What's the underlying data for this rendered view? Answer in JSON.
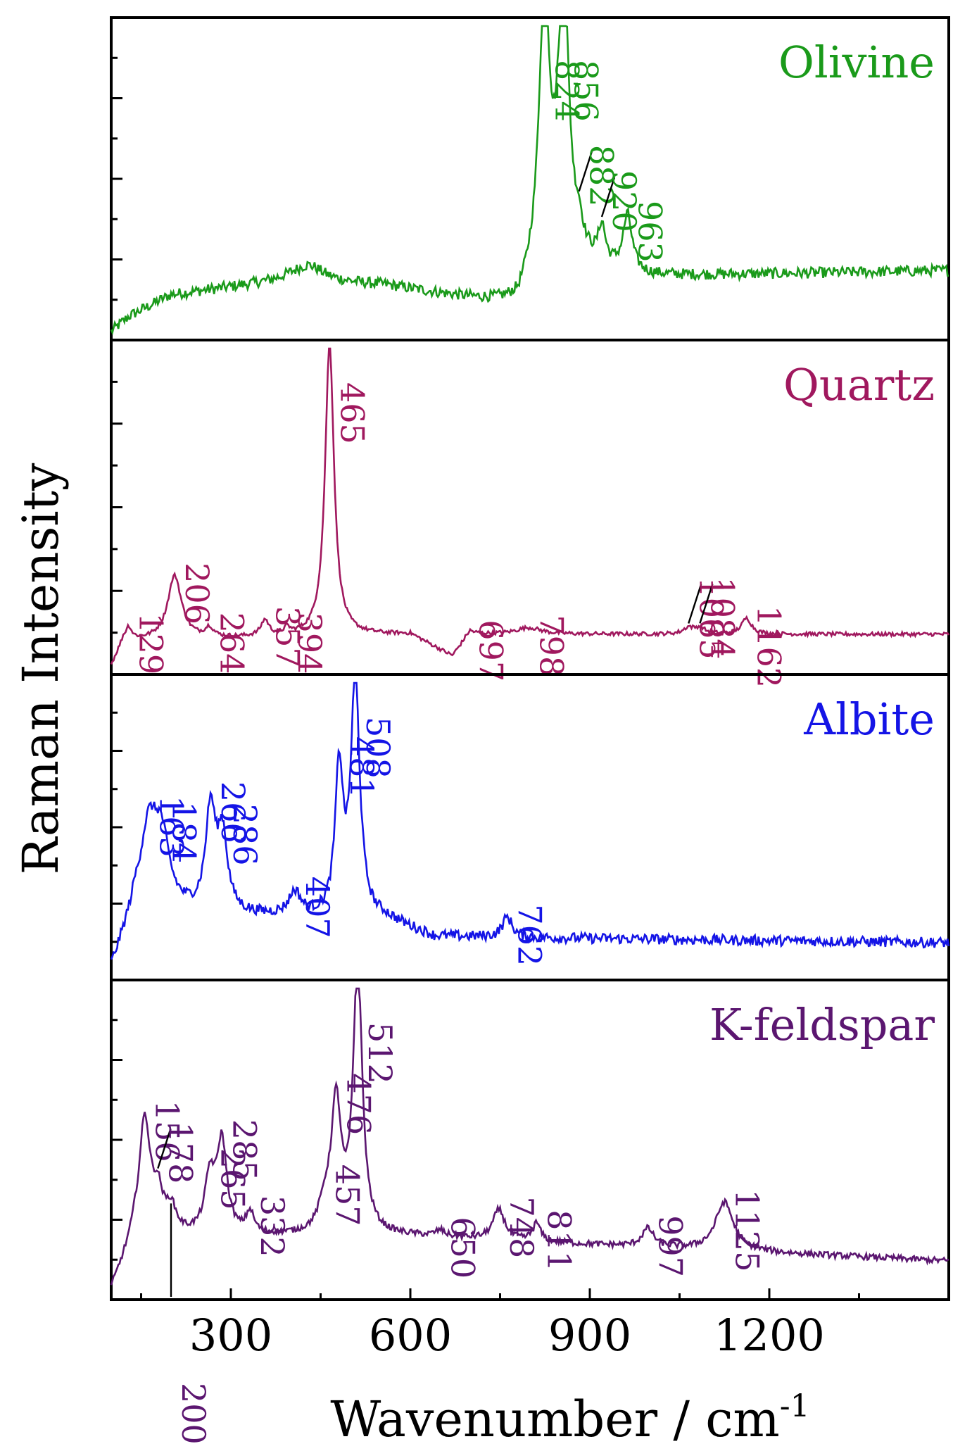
{
  "chart_data": {
    "type": "line",
    "xlabel": "Wavenumber / cm",
    "xlabel_sup": "-1",
    "ylabel": "Raman Intensity",
    "xlim": [
      100,
      1500
    ],
    "x_ticks": [
      300,
      600,
      900,
      1200
    ],
    "x_tick_labels": [
      "300",
      "600",
      "900",
      "1200"
    ],
    "grid": false,
    "panels": [
      {
        "name": "Olivine",
        "color": "#1a9a1a",
        "baseline": 0.22,
        "noise": 0.018,
        "slope": [
          [
            100,
            0.0
          ],
          [
            130,
            0.05
          ],
          [
            200,
            0.12
          ],
          [
            400,
            0.17
          ],
          [
            560,
            0.15
          ],
          [
            780,
            0.08
          ],
          [
            800,
            0.13
          ],
          [
            900,
            0.2
          ],
          [
            1000,
            0.18
          ],
          [
            1500,
            0.2
          ]
        ],
        "peaks": [
          {
            "x": 824,
            "label": "824",
            "h": 0.92,
            "w": 11
          },
          {
            "x": 856,
            "label": "856",
            "h": 0.95,
            "w": 11
          },
          {
            "x": 882,
            "label": "882",
            "h": 0.08,
            "w": 8,
            "leader": true
          },
          {
            "x": 920,
            "label": "920",
            "h": 0.12,
            "w": 7,
            "leader": true
          },
          {
            "x": 963,
            "label": "963",
            "h": 0.18,
            "w": 9
          },
          {
            "x": 430,
            "label": "",
            "h": 0.05,
            "w": 30
          }
        ]
      },
      {
        "name": "Quartz",
        "color": "#a0185e",
        "baseline": 0.1,
        "noise": 0.006,
        "slope": [
          [
            100,
            0.0
          ],
          [
            120,
            0.08
          ],
          [
            600,
            0.1
          ],
          [
            670,
            0.03
          ],
          [
            700,
            0.1
          ],
          [
            1500,
            0.1
          ]
        ],
        "peaks": [
          {
            "x": 129,
            "label": "129",
            "h": 0.04,
            "w": 6
          },
          {
            "x": 206,
            "label": "206",
            "h": 0.2,
            "w": 14
          },
          {
            "x": 264,
            "label": "264",
            "h": 0.03,
            "w": 8
          },
          {
            "x": 357,
            "label": "357",
            "h": 0.05,
            "w": 8
          },
          {
            "x": 394,
            "label": "394",
            "h": 0.02,
            "w": 6
          },
          {
            "x": 465,
            "label": "465",
            "h": 0.92,
            "w": 9
          },
          {
            "x": 697,
            "label": "697",
            "h": 0.01,
            "w": 10
          },
          {
            "x": 798,
            "label": "798",
            "h": 0.02,
            "w": 25
          },
          {
            "x": 1065,
            "label": "1065",
            "h": 0.02,
            "w": 10,
            "leader": true
          },
          {
            "x": 1084,
            "label": "1084",
            "h": 0.02,
            "w": 10,
            "leader": true
          },
          {
            "x": 1162,
            "label": "1162",
            "h": 0.05,
            "w": 10
          }
        ]
      },
      {
        "name": "Albite",
        "color": "#1414e6",
        "baseline": 0.12,
        "noise": 0.018,
        "slope": [
          [
            100,
            0.0
          ],
          [
            140,
            0.2
          ],
          [
            560,
            0.18
          ],
          [
            640,
            0.12
          ],
          [
            1500,
            0.1
          ]
        ],
        "peaks": [
          {
            "x": 163,
            "label": "163",
            "h": 0.28,
            "w": 18
          },
          {
            "x": 184,
            "label": "184",
            "h": 0.22,
            "w": 16
          },
          {
            "x": 266,
            "label": "266",
            "h": 0.35,
            "w": 10
          },
          {
            "x": 286,
            "label": "286",
            "h": 0.26,
            "w": 10
          },
          {
            "x": 407,
            "label": "407",
            "h": 0.08,
            "w": 12
          },
          {
            "x": 481,
            "label": "481",
            "h": 0.5,
            "w": 8
          },
          {
            "x": 508,
            "label": "508",
            "h": 0.82,
            "w": 9
          },
          {
            "x": 762,
            "label": "762",
            "h": 0.07,
            "w": 10
          }
        ]
      },
      {
        "name": "K-feldspar",
        "color": "#5b1670",
        "baseline": 0.1,
        "noise": 0.01,
        "slope": [
          [
            100,
            0.0
          ],
          [
            140,
            0.18
          ],
          [
            600,
            0.18
          ],
          [
            1500,
            0.1
          ]
        ],
        "peaks": [
          {
            "x": 156,
            "label": "156",
            "h": 0.38,
            "w": 11
          },
          {
            "x": 178,
            "label": "178",
            "h": 0.12,
            "w": 10,
            "leader": true
          },
          {
            "x": 200,
            "label": "200",
            "h": 0.08,
            "w": 10,
            "leader_down": true
          },
          {
            "x": 265,
            "label": "265",
            "h": 0.18,
            "w": 10
          },
          {
            "x": 285,
            "label": "285",
            "h": 0.3,
            "w": 10
          },
          {
            "x": 332,
            "label": "332",
            "h": 0.07,
            "w": 8
          },
          {
            "x": 457,
            "label": "457",
            "h": 0.08,
            "w": 12
          },
          {
            "x": 476,
            "label": "476",
            "h": 0.42,
            "w": 10
          },
          {
            "x": 512,
            "label": "512",
            "h": 0.9,
            "w": 9
          },
          {
            "x": 650,
            "label": "650",
            "h": 0.02,
            "w": 10
          },
          {
            "x": 748,
            "label": "748",
            "h": 0.1,
            "w": 12
          },
          {
            "x": 811,
            "label": "811",
            "h": 0.06,
            "w": 8
          },
          {
            "x": 997,
            "label": "997",
            "h": 0.06,
            "w": 12
          },
          {
            "x": 1125,
            "label": "1125",
            "h": 0.16,
            "w": 18
          }
        ]
      }
    ]
  }
}
